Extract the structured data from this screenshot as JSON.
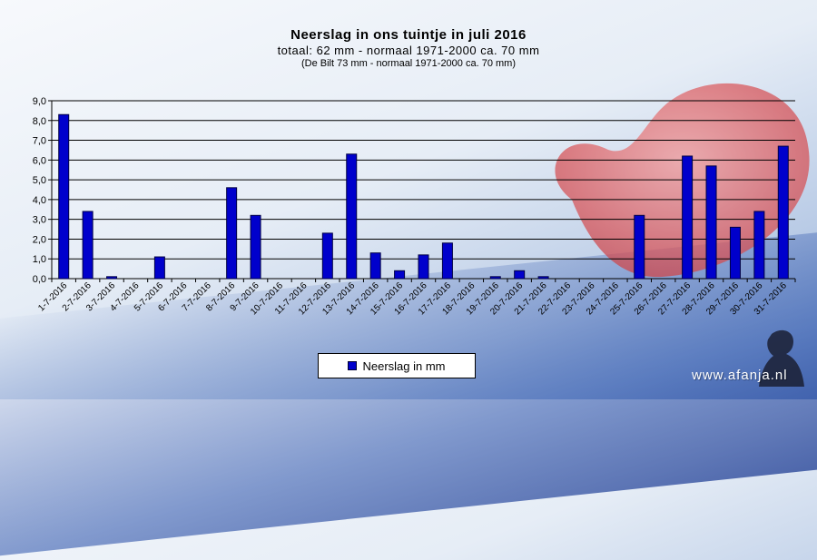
{
  "chart_data": {
    "type": "bar",
    "title": "Neerslag  in  ons  tuintje  in  juli  2016",
    "subtitle": "totaal: 62  mm   -  normaal   1971-2000  ca.  70  mm",
    "subtitle2": "(De Bilt 73 mm - normaal 1971-2000 ca. 70 mm)",
    "xlabel": "",
    "ylabel": "",
    "ylim": [
      0,
      9
    ],
    "yticks": [
      "0,0",
      "1,0",
      "2,0",
      "3,0",
      "4,0",
      "5,0",
      "6,0",
      "7,0",
      "8,0",
      "9,0"
    ],
    "grid": true,
    "legend_position": "bottom",
    "bar_color": "#0000cc",
    "categories": [
      "1-7-2016",
      "2-7-2016",
      "3-7-2016",
      "4-7-2016",
      "5-7-2016",
      "6-7-2016",
      "7-7-2016",
      "8-7-2016",
      "9-7-2016",
      "10-7-2016",
      "11-7-2016",
      "12-7-2016",
      "13-7-2016",
      "14-7-2016",
      "15-7-2016",
      "16-7-2016",
      "17-7-2016",
      "18-7-2016",
      "19-7-2016",
      "20-7-2016",
      "21-7-2016",
      "22-7-2016",
      "23-7-2016",
      "24-7-2016",
      "25-7-2016",
      "26-7-2016",
      "27-7-2016",
      "28-7-2016",
      "29-7-2016",
      "30-7-2016",
      "31-7-2016"
    ],
    "series": [
      {
        "name": "Neerslag in mm",
        "values": [
          8.3,
          3.4,
          0.1,
          0,
          1.1,
          0,
          0,
          4.6,
          3.2,
          0,
          0,
          2.3,
          6.3,
          1.3,
          0.4,
          1.2,
          1.8,
          0,
          0.1,
          0.4,
          0.1,
          0,
          0,
          0,
          3.2,
          0,
          6.2,
          5.7,
          2.6,
          3.4,
          6.7
        ]
      }
    ]
  },
  "watermark": "www.afanja.nl"
}
